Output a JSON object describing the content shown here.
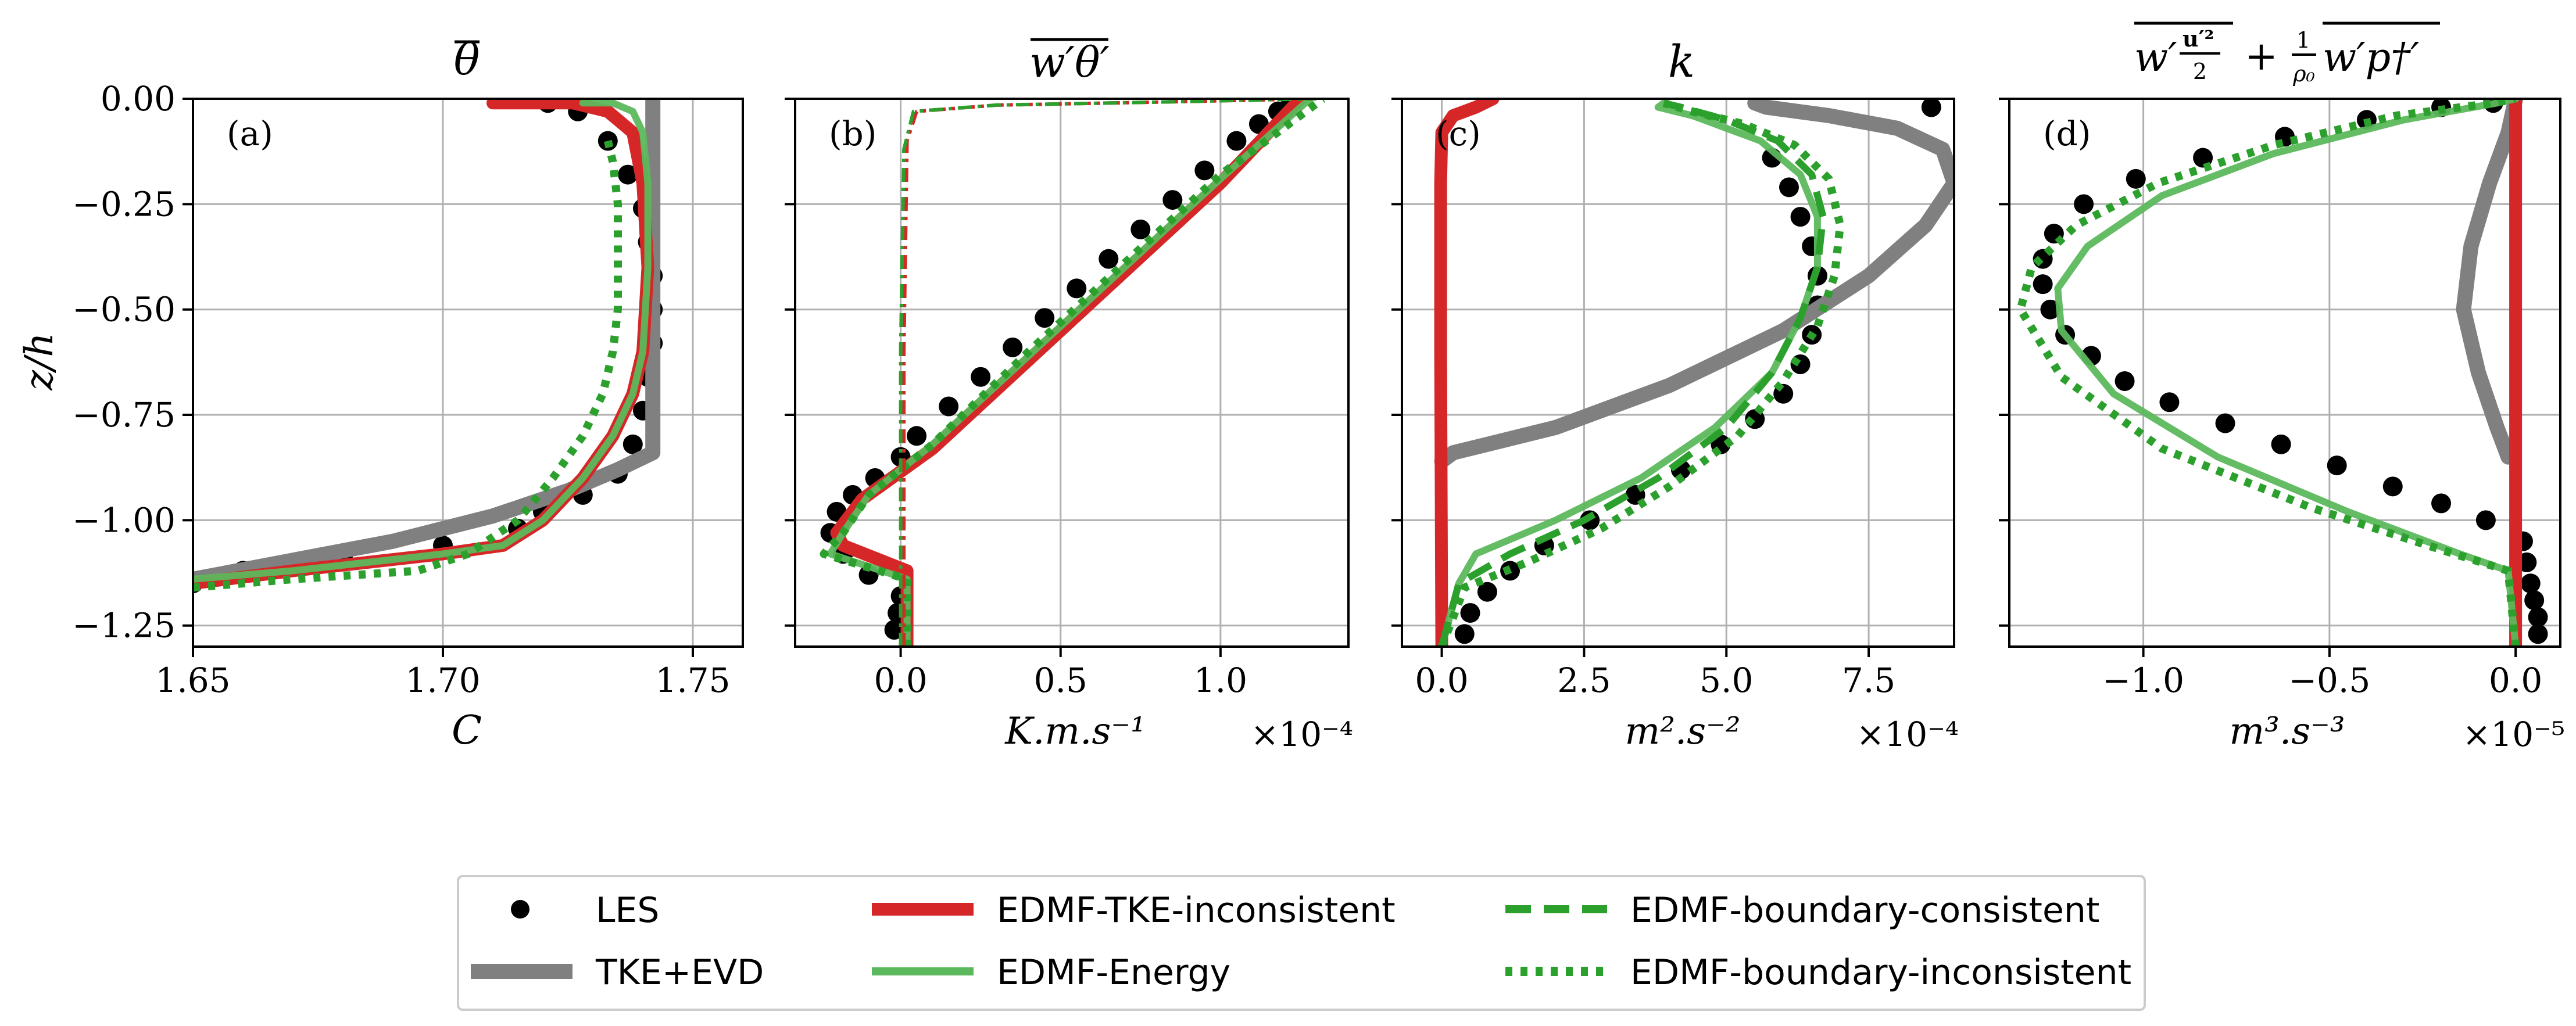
{
  "colors": {
    "les": "#000000",
    "tke_evd": "#808080",
    "edmf_tke_inconsistent": "#d62728",
    "edmf_energy": "#5cb85c",
    "edmf_boundary": "#2ca02c",
    "grid": "#b0b0b0"
  },
  "legend": {
    "placement": "bottom-center",
    "entries": [
      {
        "key": "les",
        "label": "LES",
        "style": "marker"
      },
      {
        "key": "tke_evd",
        "label": "TKE+EVD",
        "style": "solid-thick"
      },
      {
        "key": "edmf_tke_inconsistent",
        "label": "EDMF-TKE-inconsistent",
        "style": "solid-thick"
      },
      {
        "key": "edmf_energy",
        "label": "EDMF-Energy",
        "style": "solid"
      },
      {
        "key": "edmf_boundary_consistent",
        "label": "EDMF-boundary-consistent",
        "style": "dashed"
      },
      {
        "key": "edmf_boundary_inconsistent",
        "label": "EDMF-boundary-inconsistent",
        "style": "dotted"
      }
    ]
  },
  "chart_data": [
    {
      "type": "line",
      "panel_label": "(a)",
      "title": "θ̄",
      "xlabel": "C",
      "ylabel": "z/h",
      "xlim": [
        1.65,
        1.76
      ],
      "ylim": [
        -1.3,
        0.0
      ],
      "xticks": [
        1.65,
        1.7,
        1.75
      ],
      "xtick_labels": [
        "1.65",
        "1.70",
        "1.75"
      ],
      "yticks": [
        0.0,
        -0.25,
        -0.5,
        -0.75,
        -1.0,
        -1.25
      ],
      "ytick_labels": [
        "0.00",
        "−0.25",
        "−0.50",
        "−0.75",
        "−1.00",
        "−1.25"
      ],
      "multiplier": "",
      "grid": true,
      "series": [
        {
          "key": "les",
          "x": [
            1.65,
            1.66,
            1.68,
            1.7,
            1.715,
            1.72,
            1.728,
            1.735,
            1.738,
            1.74,
            1.741,
            1.742,
            1.742,
            1.742,
            1.741,
            1.74,
            1.737,
            1.733,
            1.727,
            1.721
          ],
          "y": [
            -1.15,
            -1.12,
            -1.09,
            -1.06,
            -1.02,
            -0.98,
            -0.94,
            -0.89,
            -0.82,
            -0.74,
            -0.66,
            -0.58,
            -0.5,
            -0.42,
            -0.34,
            -0.26,
            -0.18,
            -0.1,
            -0.03,
            -0.01
          ]
        },
        {
          "key": "tke_evd",
          "x": [
            1.65,
            1.69,
            1.71,
            1.725,
            1.735,
            1.742,
            1.742,
            1.742
          ],
          "y": [
            -1.14,
            -1.05,
            -0.99,
            -0.93,
            -0.88,
            -0.84,
            -0.5,
            0.0
          ]
        },
        {
          "key": "edmf_tke_inconsistent",
          "x": [
            1.65,
            1.67,
            1.7,
            1.712,
            1.72,
            1.728,
            1.734,
            1.738,
            1.74,
            1.741,
            1.74,
            1.738,
            1.733,
            1.726,
            1.71
          ],
          "y": [
            -1.15,
            -1.12,
            -1.08,
            -1.06,
            -1.0,
            -0.9,
            -0.8,
            -0.7,
            -0.6,
            -0.4,
            -0.2,
            -0.08,
            -0.03,
            -0.01,
            -0.01
          ]
        },
        {
          "key": "edmf_energy",
          "x": [
            1.65,
            1.67,
            1.7,
            1.712,
            1.72,
            1.728,
            1.734,
            1.738,
            1.74,
            1.741,
            1.741,
            1.74,
            1.738,
            1.734,
            1.728
          ],
          "y": [
            -1.14,
            -1.12,
            -1.08,
            -1.06,
            -1.0,
            -0.9,
            -0.8,
            -0.7,
            -0.6,
            -0.4,
            -0.2,
            -0.08,
            -0.03,
            -0.01,
            -0.01
          ]
        },
        {
          "key": "edmf_boundary_inconsistent",
          "x": [
            1.65,
            1.67,
            1.695,
            1.705,
            1.715,
            1.722,
            1.728,
            1.732,
            1.734,
            1.735,
            1.735,
            1.735,
            1.734,
            1.733
          ],
          "y": [
            -1.16,
            -1.14,
            -1.12,
            -1.08,
            -1.0,
            -0.9,
            -0.8,
            -0.7,
            -0.6,
            -0.5,
            -0.4,
            -0.25,
            -0.15,
            -0.1
          ]
        }
      ]
    },
    {
      "type": "line",
      "panel_label": "(b)",
      "title": "w′θ′ (overlined)",
      "xlabel": "K.m.s⁻¹",
      "ylabel": "",
      "xlim": [
        -0.33,
        1.4
      ],
      "ylim": [
        -1.3,
        0.0
      ],
      "xticks": [
        0.0,
        0.5,
        1.0
      ],
      "xtick_labels": [
        "0.0",
        "0.5",
        "1.0"
      ],
      "yticks": [
        0.0,
        -0.25,
        -0.5,
        -0.75,
        -1.0,
        -1.25
      ],
      "ytick_labels": [
        "",
        "",
        "",
        "",
        "",
        ""
      ],
      "multiplier": "×10⁻⁴",
      "grid": true,
      "series": [
        {
          "key": "les",
          "x": [
            -0.02,
            -0.01,
            0.0,
            -0.1,
            -0.18,
            -0.22,
            -0.2,
            -0.15,
            -0.08,
            0.0,
            0.05,
            0.15,
            0.25,
            0.35,
            0.45,
            0.55,
            0.65,
            0.75,
            0.85,
            0.95,
            1.05,
            1.12,
            1.18,
            1.22
          ],
          "y": [
            -1.26,
            -1.22,
            -1.18,
            -1.13,
            -1.08,
            -1.03,
            -0.98,
            -0.94,
            -0.9,
            -0.85,
            -0.8,
            -0.73,
            -0.66,
            -0.59,
            -0.52,
            -0.45,
            -0.38,
            -0.31,
            -0.24,
            -0.17,
            -0.1,
            -0.06,
            -0.03,
            -0.01
          ]
        },
        {
          "key": "edmf_tke_inconsistent",
          "x": [
            0.02,
            0.02,
            -0.18,
            -0.2,
            -0.12,
            0.1,
            0.4,
            0.7,
            1.0,
            1.25
          ],
          "y": [
            -1.3,
            -1.12,
            -1.06,
            -1.03,
            -0.95,
            -0.83,
            -0.62,
            -0.41,
            -0.2,
            0.0
          ]
        },
        {
          "key": "edmf_energy",
          "x": [
            0.02,
            0.02,
            -0.22,
            -0.18,
            -0.1,
            0.1,
            0.4,
            0.7,
            1.0,
            1.28
          ],
          "y": [
            -1.3,
            -1.14,
            -1.08,
            -1.03,
            -0.94,
            -0.82,
            -0.61,
            -0.4,
            -0.19,
            0.0
          ]
        },
        {
          "key": "edmf_boundary_inconsistent",
          "x": [
            0.02,
            0.02,
            -0.24,
            -0.18,
            -0.1,
            0.1,
            0.4,
            0.7,
            1.0,
            1.32
          ],
          "y": [
            -1.3,
            -1.14,
            -1.08,
            -1.03,
            -0.94,
            -0.82,
            -0.6,
            -0.39,
            -0.18,
            0.0
          ]
        },
        {
          "key": "edmf_tke_inconsistent_flux_small",
          "style": "dashdot",
          "color_key": "edmf_tke_inconsistent",
          "x": [
            0.01,
            0.01,
            0.02,
            0.05,
            0.3,
            0.8,
            1.3
          ],
          "y": [
            -1.3,
            -0.6,
            -0.1,
            -0.03,
            -0.015,
            -0.008,
            0.0
          ]
        },
        {
          "key": "edmf_energy_flux_small",
          "style": "dashdot",
          "color_key": "edmf_boundary",
          "x": [
            0.0,
            0.0,
            0.01,
            0.04,
            0.3,
            0.8,
            1.3
          ],
          "y": [
            -1.3,
            -0.6,
            -0.12,
            -0.03,
            -0.015,
            -0.008,
            0.0
          ]
        }
      ]
    },
    {
      "type": "line",
      "panel_label": "(c)",
      "title": "k",
      "xlabel": "m².s⁻²",
      "ylabel": "",
      "xlim": [
        -0.7,
        9.0
      ],
      "ylim": [
        -1.3,
        0.0
      ],
      "xticks": [
        0.0,
        2.5,
        5.0,
        7.5
      ],
      "xtick_labels": [
        "0.0",
        "2.5",
        "5.0",
        "7.5"
      ],
      "yticks": [
        0.0,
        -0.25,
        -0.5,
        -0.75,
        -1.0,
        -1.25
      ],
      "ytick_labels": [
        "",
        "",
        "",
        "",
        "",
        ""
      ],
      "multiplier": "×10⁻⁴",
      "grid": true,
      "series": [
        {
          "key": "les",
          "x": [
            0.4,
            0.5,
            0.8,
            1.2,
            1.8,
            2.6,
            3.4,
            4.2,
            4.9,
            5.5,
            6.0,
            6.3,
            6.5,
            6.6,
            6.6,
            6.5,
            6.3,
            6.1,
            5.8,
            8.6
          ],
          "y": [
            -1.27,
            -1.22,
            -1.17,
            -1.12,
            -1.06,
            -1.0,
            -0.94,
            -0.88,
            -0.82,
            -0.76,
            -0.7,
            -0.63,
            -0.56,
            -0.49,
            -0.42,
            -0.35,
            -0.28,
            -0.21,
            -0.14,
            -0.02
          ]
        },
        {
          "key": "tke_evd",
          "x": [
            0.0,
            0.2,
            2.0,
            4.0,
            6.0,
            7.5,
            8.5,
            9.0,
            8.8,
            8.0,
            6.8,
            5.7,
            5.5
          ],
          "y": [
            -0.86,
            -0.84,
            -0.78,
            -0.68,
            -0.55,
            -0.42,
            -0.3,
            -0.2,
            -0.12,
            -0.07,
            -0.04,
            -0.02,
            -0.01
          ]
        },
        {
          "key": "edmf_tke_inconsistent",
          "x": [
            0.0,
            -0.02,
            -0.02,
            0.0,
            0.2,
            0.6,
            0.9
          ],
          "y": [
            -1.3,
            -0.6,
            -0.2,
            -0.08,
            -0.04,
            -0.02,
            0.0
          ]
        },
        {
          "key": "edmf_energy",
          "x": [
            0.0,
            0.3,
            0.6,
            2.0,
            3.5,
            4.8,
            5.8,
            6.3,
            6.6,
            6.6,
            6.3,
            5.6,
            4.4,
            3.8,
            3.9
          ],
          "y": [
            -1.3,
            -1.15,
            -1.08,
            -1.0,
            -0.9,
            -0.78,
            -0.65,
            -0.52,
            -0.4,
            -0.28,
            -0.18,
            -0.1,
            -0.04,
            -0.02,
            -0.01
          ]
        },
        {
          "key": "edmf_boundary_consistent",
          "x": [
            0.0,
            0.3,
            1.2,
            2.5,
            3.8,
            5.0,
            5.8,
            6.3,
            6.6,
            6.7,
            6.5,
            5.9,
            5.0,
            4.2,
            3.9
          ],
          "y": [
            -1.3,
            -1.15,
            -1.08,
            -1.0,
            -0.9,
            -0.78,
            -0.65,
            -0.52,
            -0.4,
            -0.28,
            -0.18,
            -0.1,
            -0.05,
            -0.02,
            -0.01
          ]
        },
        {
          "key": "edmf_boundary_inconsistent",
          "x": [
            0.0,
            0.4,
            1.5,
            2.8,
            4.0,
            5.2,
            6.0,
            6.6,
            6.9,
            7.0,
            6.8,
            6.2,
            5.3,
            4.4,
            3.9
          ],
          "y": [
            -1.3,
            -1.16,
            -1.1,
            -1.02,
            -0.92,
            -0.8,
            -0.67,
            -0.54,
            -0.42,
            -0.3,
            -0.19,
            -0.11,
            -0.06,
            -0.03,
            -0.01
          ]
        }
      ]
    },
    {
      "type": "line",
      "panel_label": "(d)",
      "title": "w′u′²/2 + (1/ρ₀) w′p†′ (overlined)",
      "xlabel": "m³.s⁻³",
      "ylabel": "",
      "xlim": [
        -1.36,
        0.12
      ],
      "ylim": [
        -1.3,
        0.0
      ],
      "xticks": [
        -1.0,
        -0.5,
        0.0
      ],
      "xtick_labels": [
        "−1.0",
        "−0.5",
        "0.0"
      ],
      "yticks": [
        0.0,
        -0.25,
        -0.5,
        -0.75,
        -1.0,
        -1.25
      ],
      "ytick_labels": [
        "",
        "",
        "",
        "",
        "",
        ""
      ],
      "multiplier": "×10⁻⁵",
      "grid": true,
      "series": [
        {
          "key": "les",
          "x": [
            0.06,
            0.06,
            0.05,
            0.04,
            0.03,
            0.02,
            -0.08,
            -0.2,
            -0.33,
            -0.48,
            -0.63,
            -0.78,
            -0.93,
            -1.05,
            -1.14,
            -1.21,
            -1.25,
            -1.27,
            -1.27,
            -1.24,
            -1.16,
            -1.02,
            -0.84,
            -0.62,
            -0.4,
            -0.2,
            -0.06
          ],
          "y": [
            -1.27,
            -1.23,
            -1.19,
            -1.15,
            -1.1,
            -1.05,
            -1.0,
            -0.96,
            -0.92,
            -0.87,
            -0.82,
            -0.77,
            -0.72,
            -0.67,
            -0.61,
            -0.56,
            -0.5,
            -0.44,
            -0.38,
            -0.32,
            -0.25,
            -0.19,
            -0.14,
            -0.09,
            -0.05,
            -0.02,
            -0.01
          ]
        },
        {
          "key": "tke_evd",
          "x": [
            -0.02,
            -0.05,
            -0.1,
            -0.14,
            -0.12,
            -0.07,
            -0.02,
            0.0
          ],
          "y": [
            -0.85,
            -0.78,
            -0.65,
            -0.5,
            -0.35,
            -0.2,
            -0.08,
            0.0
          ]
        },
        {
          "key": "edmf_tke_inconsistent",
          "x": [
            0.0,
            0.0,
            0.0
          ],
          "y": [
            -1.3,
            -0.6,
            0.0
          ]
        },
        {
          "key": "edmf_energy",
          "x": [
            0.0,
            -0.02,
            -0.15,
            -0.45,
            -0.8,
            -1.08,
            -1.22,
            -1.23,
            -1.15,
            -0.95,
            -0.65,
            -0.3,
            -0.05,
            0.0
          ],
          "y": [
            -1.3,
            -1.12,
            -1.08,
            -0.98,
            -0.85,
            -0.7,
            -0.55,
            -0.45,
            -0.35,
            -0.23,
            -0.13,
            -0.05,
            -0.01,
            0.0
          ]
        },
        {
          "key": "edmf_boundary_inconsistent",
          "x": [
            0.0,
            -0.02,
            -0.2,
            -0.55,
            -0.95,
            -1.22,
            -1.33,
            -1.3,
            -1.18,
            -0.96,
            -0.65,
            -0.32,
            -0.06,
            0.0
          ],
          "y": [
            -1.3,
            -1.12,
            -1.07,
            -0.97,
            -0.83,
            -0.66,
            -0.5,
            -0.4,
            -0.3,
            -0.2,
            -0.11,
            -0.04,
            -0.01,
            0.0
          ]
        }
      ]
    }
  ]
}
